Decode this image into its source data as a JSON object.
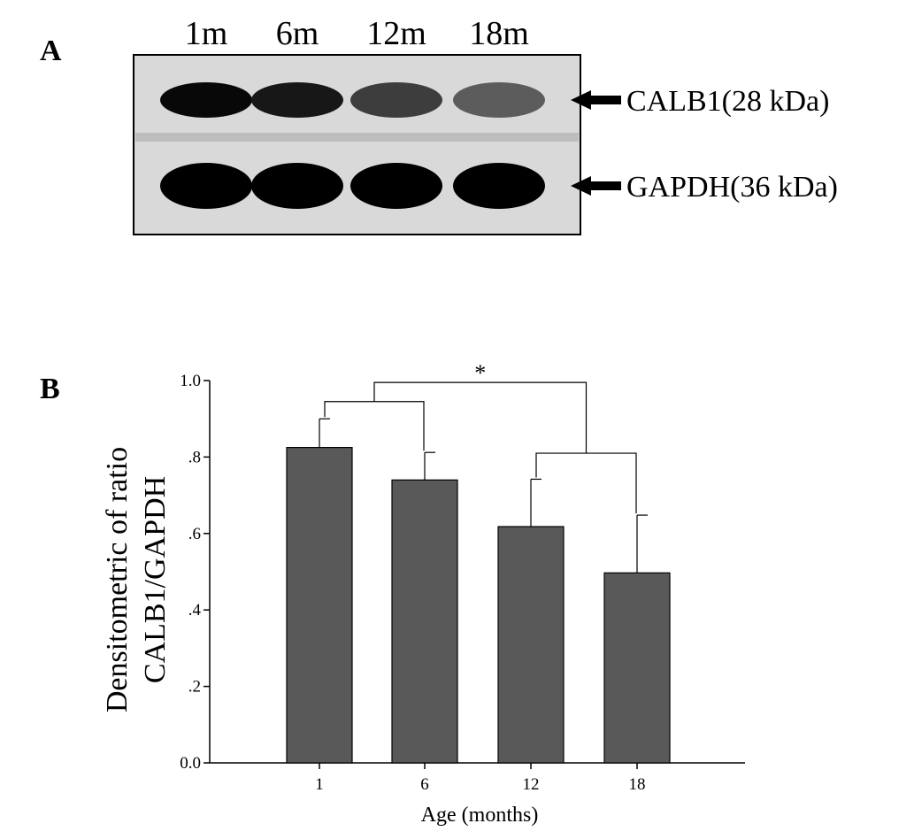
{
  "panel_a": {
    "letter": "A",
    "lanes": [
      "1m",
      "6m",
      "12m",
      "18m"
    ],
    "bands": [
      {
        "label": "CALB1(28 kDa)",
        "intensity": [
          0.95,
          0.85,
          0.6,
          0.4
        ]
      },
      {
        "label": "GAPDH(36 kDa)",
        "intensity": [
          1.0,
          1.0,
          1.0,
          1.0
        ]
      }
    ]
  },
  "panel_b": {
    "letter": "B",
    "ylabel_lines": [
      "Densitometric of ratio",
      "CALB1/GAPDH"
    ]
  },
  "chart_data": {
    "type": "bar",
    "categories": [
      "1",
      "6",
      "12",
      "18"
    ],
    "values": [
      0.825,
      0.74,
      0.618,
      0.497
    ],
    "errors": [
      0.075,
      0.072,
      0.124,
      0.151
    ],
    "xlabel": "Age (months)",
    "ylabel": "Densitometric of ratio CALB1/GAPDH",
    "ylim": [
      0,
      1.0
    ],
    "yticks": [
      0,
      0.2,
      0.4,
      0.6,
      0.8,
      1.0
    ],
    "ytick_labels": [
      "0.0",
      ".2",
      ".4",
      ".6",
      ".8",
      "1.0"
    ],
    "bar_color": "#595959",
    "significance": {
      "symbol": "*",
      "groups": [
        [
          "1",
          "6"
        ],
        [
          "12",
          "18"
        ]
      ]
    },
    "grid": false,
    "legend": "none"
  }
}
